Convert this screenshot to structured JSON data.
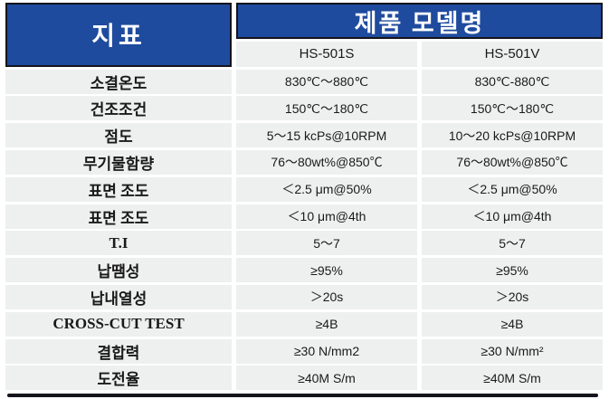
{
  "colors": {
    "header_blue": "#1f4b9e",
    "header_border": "#14141c",
    "row_bg": "#eeefef",
    "text": "#1a1a1a",
    "background": "#ffffff"
  },
  "header": {
    "indicator_label": "지표",
    "product_header": "제품 모델명",
    "models": [
      "HS-501S",
      "HS-501V"
    ]
  },
  "rows": [
    {
      "label": "소결온도",
      "hs501s": "830℃～880℃",
      "hs501v": "830℃-880℃"
    },
    {
      "label": "건조조건",
      "hs501s": "150℃～180℃",
      "hs501v": "150℃～180℃"
    },
    {
      "label": "점도",
      "hs501s": "5～15 kcPs@10RPM",
      "hs501v": "10～20 kcPs@10RPM"
    },
    {
      "label": "무기물함량",
      "hs501s": "76～80wt%@850℃",
      "hs501v": "76～80wt%@850℃"
    },
    {
      "label": "표면 조도",
      "hs501s": "＜2.5 μm@50%",
      "hs501v": "＜2.5 μm@50%"
    },
    {
      "label": "표면 조도",
      "hs501s": "＜10 μm@4th",
      "hs501v": "＜10 μm@4th"
    },
    {
      "label": "T.I",
      "hs501s": "5～7",
      "hs501v": "5～7"
    },
    {
      "label": "납땜성",
      "hs501s": "≥95%",
      "hs501v": "≥95%"
    },
    {
      "label": "납내열성",
      "hs501s": "＞20s",
      "hs501v": "＞20s"
    },
    {
      "label": "CROSS-CUT TEST",
      "hs501s": "≥4B",
      "hs501v": "≥4B"
    },
    {
      "label": "결합력",
      "hs501s": "≥30 N/mm2",
      "hs501v": "≥30 N/mm²"
    },
    {
      "label": "도전율",
      "hs501s": "≥40M S/m",
      "hs501v": "≥40M S/m"
    }
  ]
}
